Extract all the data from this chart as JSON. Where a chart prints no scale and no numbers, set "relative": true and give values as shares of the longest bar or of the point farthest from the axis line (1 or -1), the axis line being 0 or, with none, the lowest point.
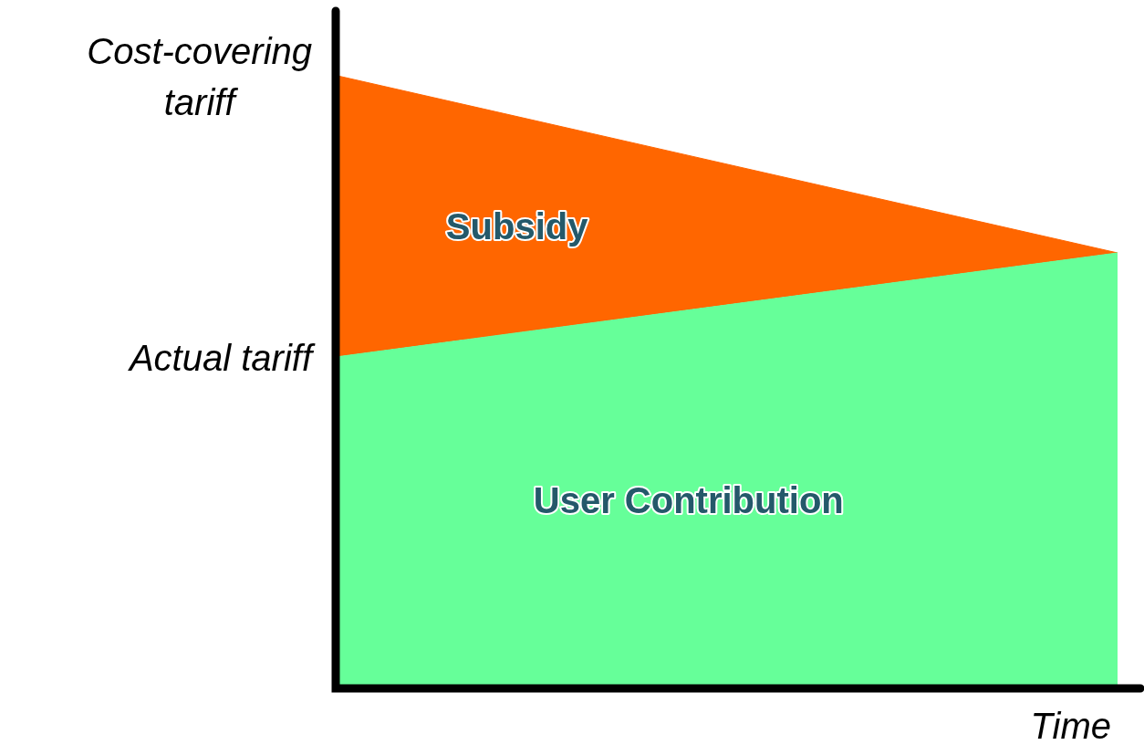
{
  "chart_data": {
    "type": "area",
    "relative": true,
    "stacked": true,
    "legend": false,
    "xlabel": "Time",
    "categories": [
      null,
      null
    ],
    "series": [
      {
        "name": "User Contribution",
        "color": "#66ff99",
        "values": [
          0.54,
          0.71
        ]
      },
      {
        "name": "Subsidy",
        "color": "#ff6600",
        "values": [
          0.46,
          0
        ]
      }
    ],
    "annotations": [
      "Cost-covering tariff",
      "Actual tariff"
    ]
  }
}
